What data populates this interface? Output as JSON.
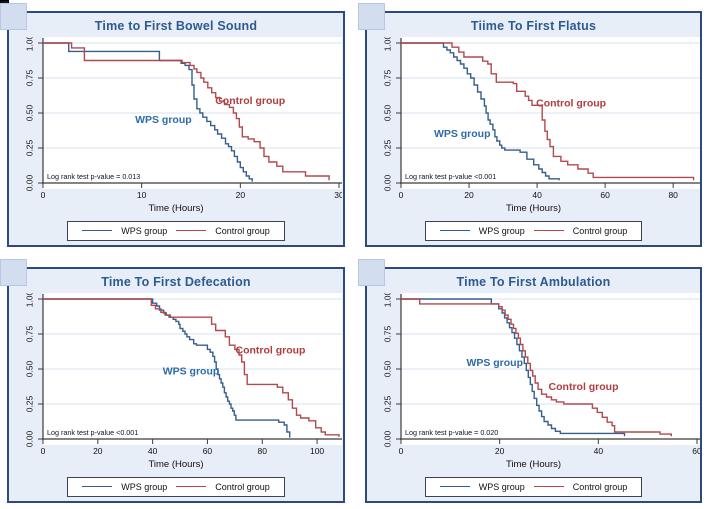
{
  "page": {
    "background": "#ffffff"
  },
  "artifact_icon": {
    "name": "ui-artifact-stripes"
  },
  "colors": {
    "panel_bg": "#e8eef7",
    "panel_border": "#2a4a80",
    "plot_bg": "#ffffff",
    "grid": "#d8e3f0",
    "axis": "#3a3a3a",
    "tick_label": "#111111",
    "title": "#2d5a92",
    "wps_line": "#355f8e",
    "control_line": "#b2494e",
    "wps_label": "#2d6ba8",
    "control_label": "#b03c3c",
    "legend_border": "#3c4354",
    "corner_square": "#d3ddf0"
  },
  "chart_data": [
    {
      "type": "line",
      "subtype": "kaplan-meier-step",
      "title": "Time to First Bowel Sound",
      "xlabel": "Time (Hours)",
      "ylabel": "",
      "annotation": "Log rank test p-value = 0.013",
      "xlim": [
        0,
        30
      ],
      "ylim": [
        0,
        1
      ],
      "xticks": [
        0,
        10,
        20,
        30
      ],
      "yticks": [
        0,
        0.25,
        0.5,
        0.75,
        1
      ],
      "grid": "horizontal",
      "legend_position": "bottom",
      "series": [
        {
          "name": "WPS group",
          "label_pos": [
            12.2,
            0.43
          ],
          "points": [
            [
              0,
              1
            ],
            [
              2.6,
              0.94
            ],
            [
              11.8,
              0.875
            ],
            [
              14,
              0.855
            ],
            [
              14.4,
              0.84
            ],
            [
              14.8,
              0.81
            ],
            [
              15.1,
              0.7
            ],
            [
              15.3,
              0.6
            ],
            [
              15.6,
              0.53
            ],
            [
              15.9,
              0.5
            ],
            [
              16.2,
              0.47
            ],
            [
              16.6,
              0.44
            ],
            [
              17,
              0.41
            ],
            [
              17.4,
              0.38
            ],
            [
              17.7,
              0.35
            ],
            [
              18.1,
              0.32
            ],
            [
              18.5,
              0.28
            ],
            [
              18.8,
              0.26
            ],
            [
              19.1,
              0.23
            ],
            [
              19.4,
              0.19
            ],
            [
              19.7,
              0.15
            ],
            [
              20,
              0.11
            ],
            [
              20.3,
              0.08
            ],
            [
              20.6,
              0.05
            ],
            [
              20.9,
              0.03
            ],
            [
              21.2,
              0.01
            ]
          ]
        },
        {
          "name": "Control group",
          "label_pos": [
            21,
            0.565
          ],
          "points": [
            [
              0,
              1
            ],
            [
              2.9,
              0.965
            ],
            [
              4.2,
              0.875
            ],
            [
              14.1,
              0.86
            ],
            [
              14.9,
              0.84
            ],
            [
              15.3,
              0.815
            ],
            [
              15.6,
              0.79
            ],
            [
              16,
              0.75
            ],
            [
              16.3,
              0.72
            ],
            [
              16.7,
              0.68
            ],
            [
              17.1,
              0.645
            ],
            [
              17.5,
              0.61
            ],
            [
              17.9,
              0.585
            ],
            [
              18.4,
              0.56
            ],
            [
              18.9,
              0.54
            ],
            [
              19.3,
              0.5
            ],
            [
              19.6,
              0.46
            ],
            [
              19.9,
              0.4
            ],
            [
              20.2,
              0.33
            ],
            [
              20.8,
              0.315
            ],
            [
              21.4,
              0.295
            ],
            [
              22,
              0.25
            ],
            [
              22.4,
              0.19
            ],
            [
              22.9,
              0.15
            ],
            [
              23.7,
              0.12
            ],
            [
              24.3,
              0.08
            ],
            [
              26.6,
              0.05
            ],
            [
              29,
              0.02
            ]
          ]
        }
      ]
    },
    {
      "type": "line",
      "subtype": "kaplan-meier-step",
      "title": "Tiime To First Flatus",
      "xlabel": "Time (Hours)",
      "ylabel": "",
      "annotation": "Log rank test p-value <0.001",
      "xlim": [
        0,
        87
      ],
      "ylim": [
        0,
        1
      ],
      "xticks": [
        0,
        20,
        40,
        60,
        80
      ],
      "yticks": [
        0,
        0.25,
        0.5,
        0.75,
        1
      ],
      "grid": "horizontal",
      "legend_position": "bottom",
      "series": [
        {
          "name": "WPS group",
          "label_pos": [
            18,
            0.33
          ],
          "points": [
            [
              0,
              1
            ],
            [
              12.5,
              0.97
            ],
            [
              13.5,
              0.95
            ],
            [
              14.5,
              0.93
            ],
            [
              15.5,
              0.9
            ],
            [
              16.5,
              0.875
            ],
            [
              17.5,
              0.85
            ],
            [
              18.5,
              0.82
            ],
            [
              19.5,
              0.78
            ],
            [
              20.5,
              0.75
            ],
            [
              21.5,
              0.7
            ],
            [
              22.5,
              0.65
            ],
            [
              23.5,
              0.6
            ],
            [
              24.5,
              0.55
            ],
            [
              25,
              0.5
            ],
            [
              25.6,
              0.45
            ],
            [
              26.2,
              0.42
            ],
            [
              27,
              0.38
            ],
            [
              27.6,
              0.33
            ],
            [
              28.2,
              0.3
            ],
            [
              29,
              0.27
            ],
            [
              29.6,
              0.25
            ],
            [
              30.5,
              0.235
            ],
            [
              35,
              0.22
            ],
            [
              37,
              0.17
            ],
            [
              39,
              0.13
            ],
            [
              40.5,
              0.1
            ],
            [
              41.5,
              0.075
            ],
            [
              42.5,
              0.05
            ],
            [
              43.5,
              0.03
            ],
            [
              46.5,
              0.02
            ]
          ]
        },
        {
          "name": "Control group",
          "label_pos": [
            50,
            0.545
          ],
          "points": [
            [
              0,
              1
            ],
            [
              15,
              0.97
            ],
            [
              17,
              0.935
            ],
            [
              18.5,
              0.9
            ],
            [
              24,
              0.87
            ],
            [
              25.5,
              0.85
            ],
            [
              26.5,
              0.78
            ],
            [
              28,
              0.72
            ],
            [
              33,
              0.71
            ],
            [
              34,
              0.655
            ],
            [
              36.5,
              0.62
            ],
            [
              37.5,
              0.59
            ],
            [
              38.5,
              0.555
            ],
            [
              41.5,
              0.45
            ],
            [
              42.3,
              0.37
            ],
            [
              43,
              0.31
            ],
            [
              43.8,
              0.26
            ],
            [
              44.8,
              0.19
            ],
            [
              47,
              0.155
            ],
            [
              49,
              0.13
            ],
            [
              52,
              0.1
            ],
            [
              55,
              0.07
            ],
            [
              56.5,
              0.04
            ],
            [
              86,
              0.02
            ]
          ]
        }
      ]
    },
    {
      "type": "line",
      "subtype": "kaplan-meier-step",
      "title": "Time To First Defecation",
      "xlabel": "Time (Hours)",
      "ylabel": "",
      "annotation": "Log rank test p-value <0.001",
      "xlim": [
        0,
        108
      ],
      "ylim": [
        0,
        1
      ],
      "xticks": [
        0,
        20,
        40,
        60,
        80,
        100
      ],
      "yticks": [
        0,
        0.25,
        0.5,
        0.75,
        1
      ],
      "grid": "horizontal",
      "legend_position": "bottom",
      "series": [
        {
          "name": "WPS group",
          "label_pos": [
            54,
            0.46
          ],
          "points": [
            [
              0,
              1
            ],
            [
              40,
              0.97
            ],
            [
              41.5,
              0.95
            ],
            [
              42.5,
              0.92
            ],
            [
              44,
              0.9
            ],
            [
              45,
              0.885
            ],
            [
              46,
              0.87
            ],
            [
              47.5,
              0.855
            ],
            [
              48.5,
              0.84
            ],
            [
              49.5,
              0.82
            ],
            [
              50,
              0.79
            ],
            [
              51,
              0.77
            ],
            [
              51.8,
              0.75
            ],
            [
              52.5,
              0.73
            ],
            [
              53.5,
              0.71
            ],
            [
              55,
              0.68
            ],
            [
              56,
              0.67
            ],
            [
              60,
              0.64
            ],
            [
              61,
              0.62
            ],
            [
              62,
              0.59
            ],
            [
              62.6,
              0.55
            ],
            [
              63.2,
              0.5
            ],
            [
              63.8,
              0.46
            ],
            [
              64.4,
              0.43
            ],
            [
              65,
              0.4
            ],
            [
              65.6,
              0.37
            ],
            [
              66.2,
              0.33
            ],
            [
              66.8,
              0.3
            ],
            [
              67.4,
              0.27
            ],
            [
              68,
              0.25
            ],
            [
              68.6,
              0.22
            ],
            [
              69.2,
              0.2
            ],
            [
              69.8,
              0.17
            ],
            [
              70.4,
              0.135
            ],
            [
              86,
              0.12
            ],
            [
              88,
              0.1
            ],
            [
              89,
              0.05
            ],
            [
              90,
              0.01
            ]
          ]
        },
        {
          "name": "Control group",
          "label_pos": [
            83,
            0.61
          ],
          "points": [
            [
              0,
              1
            ],
            [
              39.5,
              0.955
            ],
            [
              41,
              0.93
            ],
            [
              43,
              0.905
            ],
            [
              44.5,
              0.885
            ],
            [
              46.5,
              0.87
            ],
            [
              61.5,
              0.82
            ],
            [
              63,
              0.775
            ],
            [
              66.5,
              0.73
            ],
            [
              68,
              0.67
            ],
            [
              70,
              0.64
            ],
            [
              71.5,
              0.6
            ],
            [
              72.5,
              0.55
            ],
            [
              73.5,
              0.46
            ],
            [
              74.5,
              0.39
            ],
            [
              85.5,
              0.37
            ],
            [
              87.5,
              0.33
            ],
            [
              89.5,
              0.28
            ],
            [
              91,
              0.22
            ],
            [
              92.5,
              0.17
            ],
            [
              94,
              0.15
            ],
            [
              97,
              0.13
            ],
            [
              99.5,
              0.08
            ],
            [
              101.5,
              0.05
            ],
            [
              103,
              0.03
            ],
            [
              108,
              0.015
            ]
          ]
        }
      ]
    },
    {
      "type": "line",
      "subtype": "kaplan-meier-step",
      "title": "Time To First Ambulation",
      "xlabel": "Time (Hours)",
      "ylabel": "",
      "annotation": "Log rank test p-value = 0.020",
      "xlim": [
        0,
        60
      ],
      "ylim": [
        0,
        1
      ],
      "xticks": [
        0,
        20,
        40,
        60
      ],
      "yticks": [
        0,
        0.25,
        0.5,
        0.75,
        1
      ],
      "grid": "horizontal",
      "legend_position": "bottom",
      "series": [
        {
          "name": "WPS group",
          "label_pos": [
            19,
            0.52
          ],
          "points": [
            [
              0,
              1
            ],
            [
              18.3,
              0.965
            ],
            [
              19.8,
              0.93
            ],
            [
              20.5,
              0.9
            ],
            [
              21,
              0.865
            ],
            [
              21.5,
              0.83
            ],
            [
              22,
              0.795
            ],
            [
              22.5,
              0.76
            ],
            [
              23,
              0.72
            ],
            [
              23.5,
              0.675
            ],
            [
              24,
              0.63
            ],
            [
              24.5,
              0.585
            ],
            [
              25,
              0.54
            ],
            [
              25.4,
              0.49
            ],
            [
              25.8,
              0.44
            ],
            [
              26.2,
              0.39
            ],
            [
              26.6,
              0.34
            ],
            [
              27,
              0.29
            ],
            [
              27.5,
              0.24
            ],
            [
              28,
              0.2
            ],
            [
              28.5,
              0.16
            ],
            [
              29,
              0.125
            ],
            [
              29.8,
              0.1
            ],
            [
              30.5,
              0.075
            ],
            [
              31.3,
              0.055
            ],
            [
              32.3,
              0.04
            ],
            [
              45.3,
              0.02
            ]
          ]
        },
        {
          "name": "Control group",
          "label_pos": [
            37,
            0.35
          ],
          "points": [
            [
              0,
              1
            ],
            [
              3.8,
              0.965
            ],
            [
              19.8,
              0.945
            ],
            [
              20.5,
              0.92
            ],
            [
              21.1,
              0.885
            ],
            [
              21.7,
              0.855
            ],
            [
              22.3,
              0.82
            ],
            [
              22.8,
              0.79
            ],
            [
              23.3,
              0.755
            ],
            [
              23.8,
              0.72
            ],
            [
              24.2,
              0.675
            ],
            [
              24.7,
              0.63
            ],
            [
              25.2,
              0.585
            ],
            [
              25.7,
              0.54
            ],
            [
              26.2,
              0.49
            ],
            [
              26.7,
              0.45
            ],
            [
              27.2,
              0.4
            ],
            [
              27.8,
              0.355
            ],
            [
              28.5,
              0.32
            ],
            [
              29.5,
              0.3
            ],
            [
              30.5,
              0.28
            ],
            [
              31.5,
              0.265
            ],
            [
              33,
              0.25
            ],
            [
              38.8,
              0.22
            ],
            [
              39.8,
              0.19
            ],
            [
              40.8,
              0.155
            ],
            [
              41.8,
              0.12
            ],
            [
              42.8,
              0.095
            ],
            [
              43.3,
              0.05
            ],
            [
              52.5,
              0.035
            ],
            [
              54.8,
              0.02
            ]
          ]
        }
      ]
    }
  ],
  "legend": {
    "wps": "WPS group",
    "control": "Control group"
  }
}
